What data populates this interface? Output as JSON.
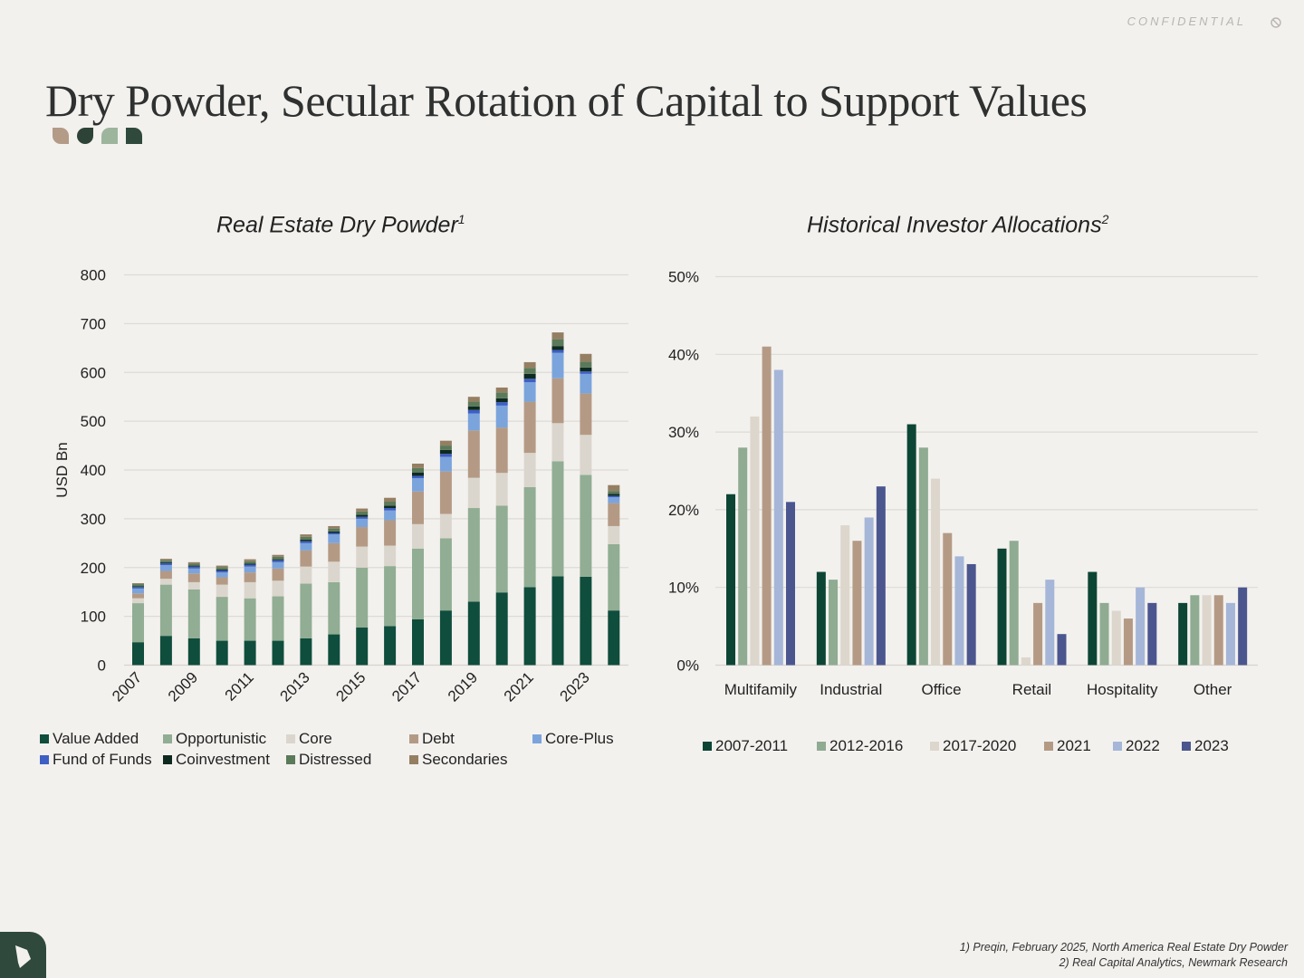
{
  "header": {
    "confidential": "CONFIDENTIAL",
    "title": "Dry Powder, Secular Rotation of Capital to Support Values"
  },
  "footnotes": [
    "1) Preqin, February 2025, North America Real Estate Dry Powder",
    "2) Real Capital Analytics, Newmark Research"
  ],
  "colors": {
    "background": "#f3f1ee",
    "brand_green": "#2f4a3c"
  },
  "icons": [
    "confidential-icon",
    "logo-mark-icon"
  ],
  "chart_data": [
    {
      "type": "bar",
      "stacked": true,
      "title": "Real Estate Dry Powder",
      "title_footnote": "1",
      "ylabel": "USD Bn",
      "xlabel": "",
      "ylim": [
        0,
        800
      ],
      "yticks": [
        0,
        100,
        200,
        300,
        400,
        500,
        600,
        700,
        800
      ],
      "grid": true,
      "legend_position": "bottom",
      "categories": [
        "2007",
        "2008",
        "2009",
        "2010",
        "2011",
        "2012",
        "2013",
        "2014",
        "2015",
        "2016",
        "2017",
        "2018",
        "2019",
        "2020",
        "2021",
        "2022",
        "2023",
        "2024"
      ],
      "tick_labels": [
        "2007",
        "2009",
        "2011",
        "2013",
        "2015",
        "2017",
        "2019",
        "2021",
        "2023"
      ],
      "series": [
        {
          "name": "Value Added",
          "color": "#0f4d3c",
          "values": [
            47,
            60,
            55,
            50,
            50,
            50,
            55,
            63,
            77,
            80,
            94,
            112,
            130,
            149,
            160,
            182,
            181,
            112
          ]
        },
        {
          "name": "Opportunistic",
          "color": "#91ad93",
          "values": [
            80,
            105,
            100,
            90,
            87,
            91,
            112,
            107,
            123,
            123,
            145,
            148,
            192,
            178,
            205,
            236,
            209,
            136
          ]
        },
        {
          "name": "Core",
          "color": "#dbd6cd",
          "values": [
            10,
            12,
            15,
            25,
            33,
            32,
            35,
            42,
            43,
            42,
            50,
            50,
            62,
            67,
            70,
            78,
            82,
            37
          ]
        },
        {
          "name": "Debt",
          "color": "#b49a85",
          "values": [
            10,
            16,
            18,
            15,
            20,
            25,
            33,
            38,
            40,
            52,
            67,
            87,
            97,
            93,
            105,
            92,
            85,
            47
          ]
        },
        {
          "name": "Core-Plus",
          "color": "#7ba4dc",
          "values": [
            10,
            12,
            10,
            10,
            12,
            13,
            15,
            18,
            17,
            20,
            27,
            30,
            35,
            45,
            40,
            52,
            40,
            12
          ]
        },
        {
          "name": "Fund of Funds",
          "color": "#3e5fc4",
          "values": [
            3,
            4,
            4,
            4,
            4,
            4,
            4,
            3,
            4,
            5,
            5,
            6,
            7,
            7,
            7,
            6,
            5,
            3
          ]
        },
        {
          "name": "Coinvestment",
          "color": "#0e2a20",
          "values": [
            2,
            2,
            2,
            2,
            2,
            2,
            3,
            3,
            4,
            5,
            7,
            8,
            7,
            8,
            10,
            8,
            8,
            4
          ]
        },
        {
          "name": "Distressed",
          "color": "#5a7a5a",
          "values": [
            4,
            4,
            4,
            5,
            5,
            5,
            6,
            6,
            7,
            8,
            9,
            9,
            10,
            12,
            12,
            14,
            12,
            6
          ]
        },
        {
          "name": "Secondaries",
          "color": "#957f63",
          "values": [
            2,
            3,
            3,
            3,
            4,
            4,
            5,
            5,
            6,
            8,
            9,
            10,
            10,
            10,
            12,
            14,
            16,
            12
          ]
        }
      ]
    },
    {
      "type": "bar",
      "title": "Historical Investor Allocations",
      "title_footnote": "2",
      "xlabel": "",
      "ylabel": "",
      "ylim": [
        0,
        50
      ],
      "yticks": [
        0,
        10,
        20,
        30,
        40,
        50
      ],
      "y_format": "percent",
      "grid": true,
      "legend_position": "bottom",
      "categories": [
        "Multifamily",
        "Industrial",
        "Office",
        "Retail",
        "Hospitality",
        "Other"
      ],
      "series": [
        {
          "name": "2007-2011",
          "color": "#0d4535",
          "values": [
            22,
            12,
            31,
            15,
            12,
            8
          ]
        },
        {
          "name": "2012-2016",
          "color": "#8fab92",
          "values": [
            28,
            11,
            28,
            16,
            8,
            9
          ]
        },
        {
          "name": "2017-2020",
          "color": "#dcd6cc",
          "values": [
            32,
            18,
            24,
            1,
            7,
            9
          ]
        },
        {
          "name": "2021",
          "color": "#b49a85",
          "values": [
            41,
            16,
            17,
            8,
            6,
            9
          ]
        },
        {
          "name": "2022",
          "color": "#a5b6d8",
          "values": [
            38,
            19,
            14,
            11,
            10,
            8
          ]
        },
        {
          "name": "2023",
          "color": "#4b568f",
          "values": [
            21,
            23,
            13,
            4,
            8,
            10
          ]
        }
      ]
    }
  ]
}
